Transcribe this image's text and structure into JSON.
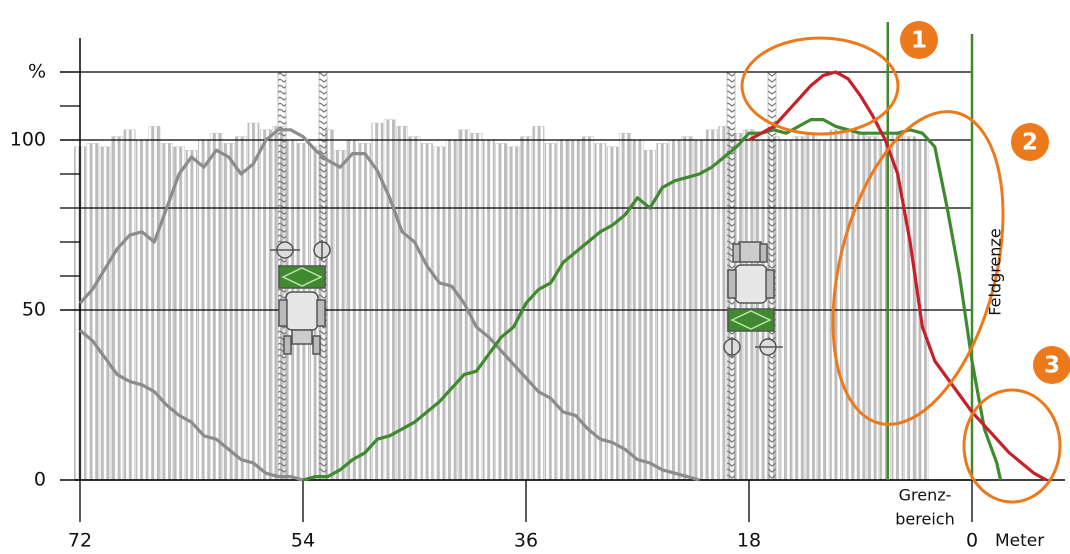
{
  "chart_data": {
    "type": "combo",
    "xlim": [
      72,
      -7.5
    ],
    "ylim": [
      0,
      130
    ],
    "xticks": [
      72,
      54,
      36,
      18,
      0
    ],
    "yticks": [
      0,
      50,
      100,
      {
        "value": 120,
        "label": "%"
      }
    ],
    "grid_lines": [
      0,
      50,
      80,
      100,
      120
    ],
    "minor_ticks": [
      60,
      70,
      90,
      110
    ],
    "x_label": "Meter",
    "bars": {
      "color": "#b8b8b8",
      "x": [
        72,
        71,
        70,
        69,
        68,
        67,
        66,
        65,
        64,
        63,
        62,
        61,
        60,
        59,
        58,
        57,
        56,
        55,
        54,
        53,
        52,
        51,
        50,
        49,
        48,
        47,
        46,
        45,
        44,
        43,
        42,
        41,
        40,
        39,
        38,
        37,
        36,
        35,
        34,
        33,
        32,
        31,
        30,
        29,
        28,
        27,
        26,
        25,
        24,
        23,
        22,
        21,
        20,
        19,
        18,
        17,
        16,
        15,
        14,
        13,
        12,
        11,
        10,
        9,
        8,
        7,
        6,
        5,
        4
      ],
      "values": [
        98,
        99,
        98,
        101,
        103,
        100,
        104,
        99,
        98,
        97,
        100,
        102,
        99,
        101,
        105,
        103,
        104,
        100,
        99,
        98,
        103,
        97,
        100,
        99,
        105,
        106,
        104,
        101,
        99,
        98,
        100,
        103,
        102,
        100,
        99,
        98,
        101,
        104,
        99,
        100,
        100,
        101,
        99,
        98,
        102,
        100,
        97,
        99,
        100,
        101,
        100,
        103,
        104,
        102,
        103,
        100,
        101,
        100,
        101,
        102,
        100,
        103,
        103,
        102,
        101,
        100,
        102,
        101,
        100
      ]
    },
    "series": [
      {
        "color": "#8c8c8c",
        "x": [
          72,
          71,
          70,
          69,
          68,
          67,
          66,
          65,
          64,
          63,
          62,
          61,
          60,
          59,
          58,
          57,
          56,
          55,
          54
        ],
        "values": [
          44,
          41,
          36,
          31,
          29,
          28,
          26,
          22,
          19,
          17,
          13,
          12,
          9,
          6,
          5,
          2,
          1,
          1,
          0
        ]
      },
      {
        "color": "#8c8c8c",
        "x": [
          72,
          71,
          70,
          69,
          68,
          67,
          66,
          65,
          64,
          63,
          62,
          61,
          60,
          59,
          58,
          57,
          56,
          55,
          54,
          53,
          52,
          51,
          50,
          49,
          48,
          47,
          46,
          45,
          44,
          43,
          42,
          41,
          40,
          39,
          38,
          37,
          36,
          35,
          34,
          33,
          32,
          31,
          30,
          29,
          28,
          27,
          26,
          25,
          24,
          23,
          22
        ],
        "values": [
          52,
          56,
          62,
          68,
          72,
          73,
          70,
          80,
          90,
          95,
          92,
          97,
          95,
          90,
          93,
          100,
          103,
          103,
          101,
          97,
          94,
          92,
          96,
          96,
          91,
          83,
          73,
          70,
          63,
          58,
          57,
          52,
          45,
          42,
          38,
          34,
          30,
          26,
          24,
          20,
          19,
          15,
          12,
          11,
          9,
          6,
          5,
          3,
          2,
          1,
          0
        ]
      },
      {
        "color": "#3f8a2e",
        "x": [
          54,
          53,
          52,
          51,
          50,
          49,
          48,
          47,
          46,
          45,
          44,
          43,
          42,
          41,
          40,
          39,
          38,
          37,
          36,
          35,
          34,
          33,
          32,
          31,
          30,
          29,
          28,
          27,
          26,
          25,
          24,
          23,
          22,
          21,
          20,
          19,
          18,
          17,
          16,
          15,
          14,
          13,
          12,
          11,
          10,
          9,
          8,
          7,
          6,
          5,
          4,
          3,
          2,
          1,
          0,
          -1,
          -2,
          -2.3
        ],
        "values": [
          0,
          1,
          1,
          3,
          6,
          8,
          12,
          13,
          15,
          17,
          20,
          23,
          27,
          31,
          32,
          37,
          42,
          45,
          52,
          56,
          58,
          64,
          67,
          70,
          73,
          75,
          78,
          83,
          80,
          86,
          88,
          89,
          90,
          92,
          95,
          98,
          102,
          102,
          103,
          102,
          104,
          106,
          106,
          104,
          103,
          102,
          102,
          102,
          102,
          103,
          102,
          98,
          80,
          60,
          35,
          15,
          5,
          0
        ]
      },
      {
        "color": "#c8202a",
        "x": [
          18,
          17,
          16,
          15,
          14,
          13,
          12,
          11,
          10,
          9,
          8,
          7,
          6,
          5,
          4,
          3,
          2,
          1,
          0,
          -1,
          -2,
          -3,
          -4,
          -5,
          -6
        ],
        "values": [
          100,
          102,
          104,
          108,
          112,
          116,
          119,
          120,
          118,
          113,
          107,
          100,
          90,
          70,
          45,
          35,
          30,
          25,
          20,
          16,
          12,
          8,
          5,
          2,
          0
        ]
      }
    ],
    "boundary_lines": [
      6.8,
      0
    ],
    "boundary_color": "#3f8a2e",
    "annotations": {
      "field_boundary": "Feldgrenze",
      "boundary_zone": [
        "Grenz-",
        "bereich"
      ],
      "markers": [
        "1",
        "2",
        "3"
      ]
    }
  }
}
